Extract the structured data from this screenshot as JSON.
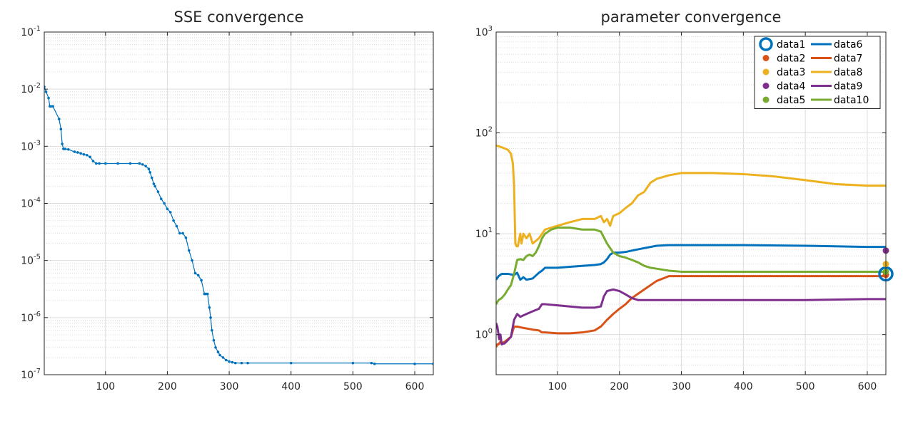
{
  "chart_data": [
    {
      "type": "line",
      "title": "SSE convergence",
      "xlabel": "",
      "ylabel": "",
      "xlim": [
        1,
        630
      ],
      "ylim": [
        1e-07,
        0.1
      ],
      "yscale": "log",
      "grid": true,
      "xticks": [
        100,
        200,
        300,
        400,
        500,
        600
      ],
      "xtick_labels": [
        "100",
        "200",
        "300",
        "400",
        "500",
        "600"
      ],
      "yticks": [
        1e-07,
        1e-06,
        1e-05,
        0.0001,
        0.001,
        0.01,
        0.1
      ],
      "ytick_labels": [
        {
          "base": "10",
          "exp": "-7"
        },
        {
          "base": "10",
          "exp": "-6"
        },
        {
          "base": "10",
          "exp": "-5"
        },
        {
          "base": "10",
          "exp": "-4"
        },
        {
          "base": "10",
          "exp": "-3"
        },
        {
          "base": "10",
          "exp": "-2"
        },
        {
          "base": "10",
          "exp": "-1"
        }
      ],
      "series": [
        {
          "color": "#0072BD",
          "marker": "dot",
          "x": [
            1,
            4,
            8,
            10,
            12,
            15,
            25,
            28,
            30,
            32,
            35,
            40,
            50,
            55,
            60,
            65,
            70,
            75,
            80,
            85,
            90,
            100,
            120,
            140,
            155,
            160,
            165,
            170,
            172,
            175,
            178,
            180,
            185,
            190,
            195,
            200,
            205,
            210,
            215,
            220,
            225,
            230,
            235,
            240,
            245,
            250,
            255,
            260,
            262,
            265,
            268,
            270,
            272,
            275,
            278,
            282,
            285,
            290,
            295,
            300,
            305,
            310,
            320,
            330,
            400,
            500,
            530,
            535,
            600,
            630
          ],
          "y": [
            0.011,
            0.009,
            0.007,
            0.005,
            0.005,
            0.005,
            0.003,
            0.002,
            0.0011,
            0.0009,
            0.0009,
            0.00088,
            0.0008,
            0.00078,
            0.00075,
            0.00072,
            0.0007,
            0.00065,
            0.00055,
            0.0005,
            0.0005,
            0.0005,
            0.0005,
            0.0005,
            0.0005,
            0.00048,
            0.00045,
            0.0004,
            0.00035,
            0.00028,
            0.00022,
            0.0002,
            0.00016,
            0.00012,
            0.0001,
            8e-05,
            7e-05,
            5e-05,
            4e-05,
            3e-05,
            3e-05,
            2.5e-05,
            1.5e-05,
            1e-05,
            6e-06,
            5.5e-06,
            4.5e-06,
            2.6e-06,
            2.6e-06,
            2.6e-06,
            1.5e-06,
            1e-06,
            6e-07,
            4e-07,
            3e-07,
            2.5e-07,
            2.2e-07,
            2e-07,
            1.8e-07,
            1.7e-07,
            1.65e-07,
            1.6e-07,
            1.6e-07,
            1.6e-07,
            1.6e-07,
            1.6e-07,
            1.6e-07,
            1.55e-07,
            1.55e-07,
            1.55e-07
          ]
        }
      ]
    },
    {
      "type": "line",
      "title": "parameter convergence",
      "xlabel": "",
      "ylabel": "",
      "xlim": [
        1,
        630
      ],
      "ylim": [
        0.4,
        1000
      ],
      "yscale": "log",
      "grid": true,
      "legend_position": "top-right",
      "xticks": [
        100,
        200,
        300,
        400,
        500,
        600
      ],
      "xtick_labels": [
        "100",
        "200",
        "300",
        "400",
        "500",
        "600"
      ],
      "yticks": [
        1,
        10,
        100,
        1000
      ],
      "ytick_labels": [
        {
          "base": "10",
          "exp": "0"
        },
        {
          "base": "10",
          "exp": "1"
        },
        {
          "base": "10",
          "exp": "2"
        },
        {
          "base": "10",
          "exp": "3"
        }
      ],
      "series": [
        {
          "name": "data1",
          "kind": "marker",
          "marker": "open-circle",
          "color": "#0072BD",
          "x": [
            630
          ],
          "y": [
            4.0
          ]
        },
        {
          "name": "data2",
          "kind": "marker",
          "marker": "filled-circle",
          "color": "#D95319",
          "x": [
            630
          ],
          "y": [
            3.9
          ]
        },
        {
          "name": "data3",
          "kind": "marker",
          "marker": "filled-circle",
          "color": "#EDB120",
          "x": [
            630
          ],
          "y": [
            5.0
          ]
        },
        {
          "name": "data4",
          "kind": "marker",
          "marker": "filled-circle",
          "color": "#7E2F8E",
          "x": [
            630
          ],
          "y": [
            6.8
          ]
        },
        {
          "name": "data5",
          "kind": "marker",
          "marker": "filled-circle",
          "color": "#77AC30",
          "x": [
            630
          ],
          "y": [
            4.2
          ]
        },
        {
          "name": "data6",
          "kind": "line",
          "color": "#0072BD",
          "x": [
            1,
            5,
            10,
            20,
            30,
            35,
            40,
            45,
            50,
            60,
            70,
            75,
            80,
            100,
            120,
            140,
            160,
            170,
            175,
            180,
            185,
            190,
            200,
            210,
            220,
            240,
            260,
            280,
            300,
            400,
            500,
            600,
            630
          ],
          "y": [
            3.5,
            3.8,
            4.0,
            4.0,
            3.9,
            4.1,
            3.5,
            3.7,
            3.5,
            3.6,
            4.1,
            4.3,
            4.6,
            4.6,
            4.7,
            4.8,
            4.9,
            5.0,
            5.2,
            5.6,
            6.2,
            6.5,
            6.5,
            6.6,
            6.8,
            7.2,
            7.6,
            7.7,
            7.7,
            7.7,
            7.6,
            7.4,
            7.4
          ]
        },
        {
          "name": "data7",
          "kind": "line",
          "color": "#D95319",
          "x": [
            1,
            3,
            5,
            8,
            10,
            15,
            20,
            25,
            30,
            35,
            40,
            60,
            70,
            75,
            80,
            100,
            120,
            140,
            160,
            170,
            180,
            190,
            200,
            210,
            220,
            240,
            260,
            280,
            300,
            400,
            500,
            600,
            630
          ],
          "y": [
            0.75,
            0.8,
            0.8,
            0.85,
            0.82,
            0.85,
            0.9,
            0.95,
            1.2,
            1.2,
            1.18,
            1.12,
            1.1,
            1.05,
            1.05,
            1.03,
            1.03,
            1.05,
            1.1,
            1.2,
            1.4,
            1.6,
            1.8,
            2.0,
            2.3,
            2.8,
            3.4,
            3.8,
            3.8,
            3.8,
            3.8,
            3.8,
            3.8
          ]
        },
        {
          "name": "data8",
          "kind": "line",
          "color": "#EDB120",
          "x": [
            1,
            10,
            20,
            25,
            28,
            30,
            32,
            34,
            36,
            40,
            42,
            45,
            50,
            55,
            60,
            70,
            80,
            100,
            120,
            140,
            160,
            170,
            175,
            180,
            185,
            190,
            200,
            210,
            220,
            230,
            240,
            250,
            260,
            280,
            300,
            350,
            400,
            450,
            500,
            550,
            600,
            630
          ],
          "y": [
            75,
            72,
            68,
            62,
            50,
            30,
            8,
            7.5,
            7.5,
            10,
            8,
            10,
            9,
            10,
            8,
            9,
            11,
            12,
            13,
            14,
            14,
            15,
            13,
            14,
            12,
            15,
            16,
            18,
            20,
            24,
            26,
            32,
            35,
            38,
            40,
            40,
            39,
            37,
            34,
            31,
            30,
            30
          ]
        },
        {
          "name": "data9",
          "kind": "line",
          "color": "#7E2F8E",
          "x": [
            1,
            3,
            6,
            8,
            10,
            15,
            20,
            25,
            30,
            35,
            40,
            50,
            60,
            70,
            75,
            80,
            100,
            120,
            140,
            160,
            170,
            175,
            180,
            190,
            200,
            210,
            220,
            230,
            240,
            260,
            280,
            300,
            400,
            500,
            600,
            630
          ],
          "y": [
            1.3,
            1.2,
            0.9,
            1.0,
            0.8,
            0.82,
            0.88,
            0.95,
            1.4,
            1.6,
            1.5,
            1.6,
            1.7,
            1.8,
            2.0,
            2.0,
            1.95,
            1.9,
            1.85,
            1.85,
            1.9,
            2.4,
            2.7,
            2.8,
            2.7,
            2.5,
            2.3,
            2.2,
            2.2,
            2.2,
            2.2,
            2.2,
            2.2,
            2.2,
            2.25,
            2.25
          ]
        },
        {
          "name": "data10",
          "kind": "line",
          "color": "#77AC30",
          "x": [
            1,
            5,
            10,
            15,
            20,
            25,
            30,
            35,
            40,
            45,
            50,
            55,
            60,
            65,
            70,
            75,
            80,
            90,
            100,
            120,
            140,
            160,
            170,
            180,
            190,
            200,
            210,
            220,
            230,
            240,
            250,
            260,
            270,
            280,
            300,
            400,
            500,
            600,
            630
          ],
          "y": [
            2.0,
            2.2,
            2.3,
            2.5,
            2.8,
            3.1,
            4.0,
            5.5,
            5.6,
            5.5,
            6.0,
            6.2,
            6.0,
            6.5,
            7.5,
            9.0,
            10.0,
            11.0,
            11.5,
            11.5,
            11.0,
            11.0,
            10.5,
            8.0,
            6.5,
            6.0,
            5.8,
            5.5,
            5.2,
            4.8,
            4.6,
            4.5,
            4.4,
            4.3,
            4.2,
            4.2,
            4.2,
            4.2,
            4.2
          ]
        }
      ]
    }
  ]
}
